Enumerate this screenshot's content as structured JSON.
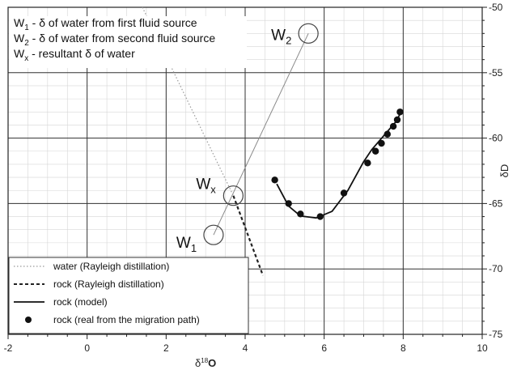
{
  "chart_data": {
    "type": "line",
    "xlim": [
      -2,
      10
    ],
    "ylim": [
      -75,
      -50
    ],
    "x_ticks": [
      -2,
      0,
      2,
      4,
      6,
      8,
      10
    ],
    "y_ticks": [
      -50,
      -55,
      -60,
      -65,
      -70,
      -75
    ],
    "x_minor_step": 0.5,
    "y_minor_step": 1,
    "grid": true,
    "xlabel": {
      "main": "δ",
      "sup": "18",
      "rest": "O"
    },
    "ylabel": "δD",
    "annotations_box": [
      {
        "main": "W",
        "sub": "1",
        "text": " - δ of water from first fluid source"
      },
      {
        "main": "W",
        "sub": "2",
        "text": " - δ of water from second fluid source"
      },
      {
        "main": "W",
        "sub": "x",
        "text": " - resultant δ of water"
      }
    ],
    "point_labels": [
      {
        "main": "W",
        "sub": "1",
        "x": 3.2,
        "y": -67.4
      },
      {
        "main": "W",
        "sub": "2",
        "x": 5.6,
        "y": -52.0
      },
      {
        "main": "W",
        "sub": "x",
        "x": 3.7,
        "y": -64.4
      }
    ],
    "mixing_line": {
      "x": [
        3.2,
        5.6
      ],
      "y": [
        -67.4,
        -52.0
      ]
    },
    "series": [
      {
        "name": "water (Rayleigh distillation)",
        "style": "dotted",
        "color": "#9a9a9a",
        "x": [
          1.4,
          3.7
        ],
        "y": [
          -50.0,
          -64.4
        ]
      },
      {
        "name": "rock (Rayleigh distillation)",
        "style": "dashed",
        "color": "#222222",
        "x": [
          3.7,
          4.45
        ],
        "y": [
          -64.4,
          -70.5
        ]
      },
      {
        "name": "rock (model)",
        "style": "solid",
        "color": "#111111",
        "x": [
          4.8,
          5.1,
          5.4,
          5.8,
          6.2,
          6.6,
          7.0,
          7.2,
          7.4,
          7.6,
          7.8,
          7.95
        ],
        "y": [
          -63.5,
          -65.2,
          -65.95,
          -66.1,
          -65.6,
          -64.0,
          -61.8,
          -60.9,
          -60.2,
          -59.5,
          -58.8,
          -58.0
        ]
      },
      {
        "name": "rock (real from the migration path)",
        "style": "markers",
        "color": "#111111",
        "x": [
          4.75,
          5.1,
          5.4,
          5.9,
          6.5,
          7.1,
          7.3,
          7.45,
          7.6,
          7.75,
          7.85,
          7.92
        ],
        "y": [
          -63.2,
          -65.0,
          -65.8,
          -66.0,
          -64.2,
          -61.9,
          -61.0,
          -60.4,
          -59.7,
          -59.1,
          -58.6,
          -58.0
        ]
      }
    ],
    "legend_position": "bottom-left"
  }
}
